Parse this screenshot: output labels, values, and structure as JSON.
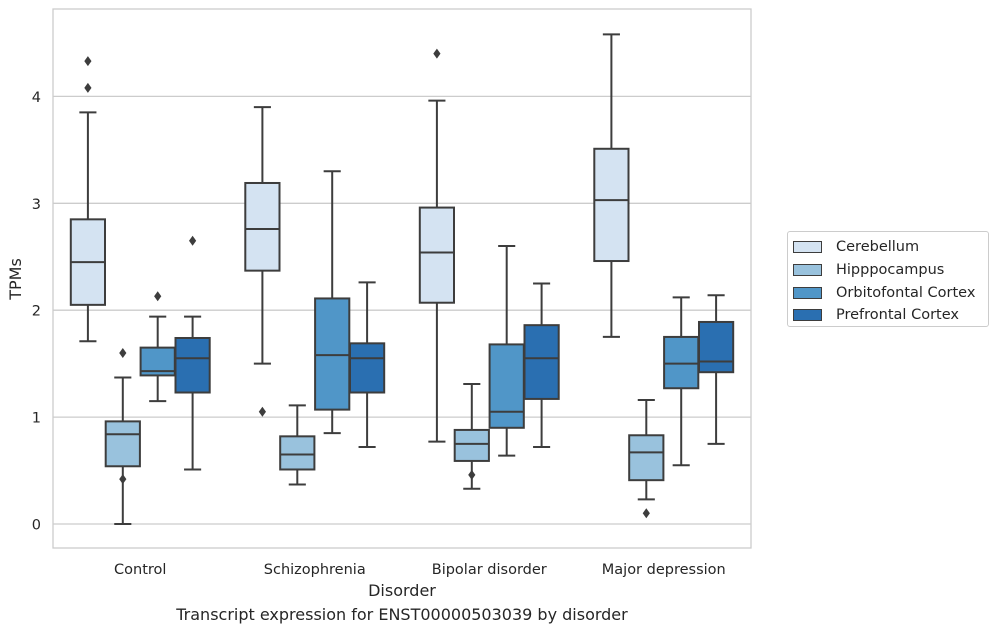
{
  "chart_data": {
    "type": "box",
    "xlabel": "Disorder",
    "ylabel": "TPMs",
    "caption": "Transcript expression for ENST00000503039 by disorder",
    "categories": [
      "Control",
      "Schizophrenia",
      "Bipolar disorder",
      "Major depression"
    ],
    "ylim": [
      -0.22,
      4.82
    ],
    "yticks": [
      "0",
      "1",
      "2",
      "3",
      "4"
    ],
    "ytick_values": [
      0,
      1,
      2,
      3,
      4
    ],
    "grid": "horizontal",
    "legend_position": "right",
    "series": [
      {
        "name": "Cerebellum",
        "color": "#d4e3f2",
        "boxes": [
          {
            "whislo": 1.71,
            "q1": 2.05,
            "median": 2.45,
            "q3": 2.85,
            "whishi": 3.85,
            "fliers": [
              4.08,
              4.33
            ]
          },
          {
            "whislo": 1.5,
            "q1": 2.37,
            "median": 2.76,
            "q3": 3.19,
            "whishi": 3.9,
            "fliers": [
              1.05
            ]
          },
          {
            "whislo": 0.77,
            "q1": 2.07,
            "median": 2.54,
            "q3": 2.96,
            "whishi": 3.96,
            "fliers": [
              4.4
            ]
          },
          {
            "whislo": 1.75,
            "q1": 2.46,
            "median": 3.03,
            "q3": 3.51,
            "whishi": 4.58,
            "fliers": []
          }
        ]
      },
      {
        "name": "Hipppocampus",
        "color": "#99c2dd",
        "boxes": [
          {
            "whislo": 0.0,
            "q1": 0.54,
            "median": 0.84,
            "q3": 0.96,
            "whishi": 1.37,
            "fliers": [
              1.6,
              0.42
            ]
          },
          {
            "whislo": 0.37,
            "q1": 0.51,
            "median": 0.65,
            "q3": 0.82,
            "whishi": 1.11,
            "fliers": []
          },
          {
            "whislo": 0.33,
            "q1": 0.59,
            "median": 0.75,
            "q3": 0.88,
            "whishi": 1.31,
            "fliers": [
              0.46
            ]
          },
          {
            "whislo": 0.23,
            "q1": 0.41,
            "median": 0.67,
            "q3": 0.83,
            "whishi": 1.16,
            "fliers": [
              0.1
            ]
          }
        ]
      },
      {
        "name": "Orbitofontal Cortex",
        "color": "#5096c8",
        "boxes": [
          {
            "whislo": 1.15,
            "q1": 1.39,
            "median": 1.43,
            "q3": 1.65,
            "whishi": 1.94,
            "fliers": [
              2.13
            ]
          },
          {
            "whislo": 0.85,
            "q1": 1.07,
            "median": 1.58,
            "q3": 2.11,
            "whishi": 3.3,
            "fliers": []
          },
          {
            "whislo": 0.64,
            "q1": 0.9,
            "median": 1.05,
            "q3": 1.68,
            "whishi": 2.6,
            "fliers": []
          },
          {
            "whislo": 0.55,
            "q1": 1.27,
            "median": 1.5,
            "q3": 1.75,
            "whishi": 2.12,
            "fliers": []
          }
        ]
      },
      {
        "name": "Prefrontal Cortex",
        "color": "#2a6fb1",
        "boxes": [
          {
            "whislo": 0.51,
            "q1": 1.23,
            "median": 1.55,
            "q3": 1.74,
            "whishi": 1.94,
            "fliers": [
              2.65
            ]
          },
          {
            "whislo": 0.72,
            "q1": 1.23,
            "median": 1.55,
            "q3": 1.69,
            "whishi": 2.26,
            "fliers": []
          },
          {
            "whislo": 0.72,
            "q1": 1.17,
            "median": 1.55,
            "q3": 1.86,
            "whishi": 2.25,
            "fliers": []
          },
          {
            "whislo": 0.75,
            "q1": 1.42,
            "median": 1.52,
            "q3": 1.89,
            "whishi": 2.14,
            "fliers": []
          }
        ]
      }
    ]
  }
}
